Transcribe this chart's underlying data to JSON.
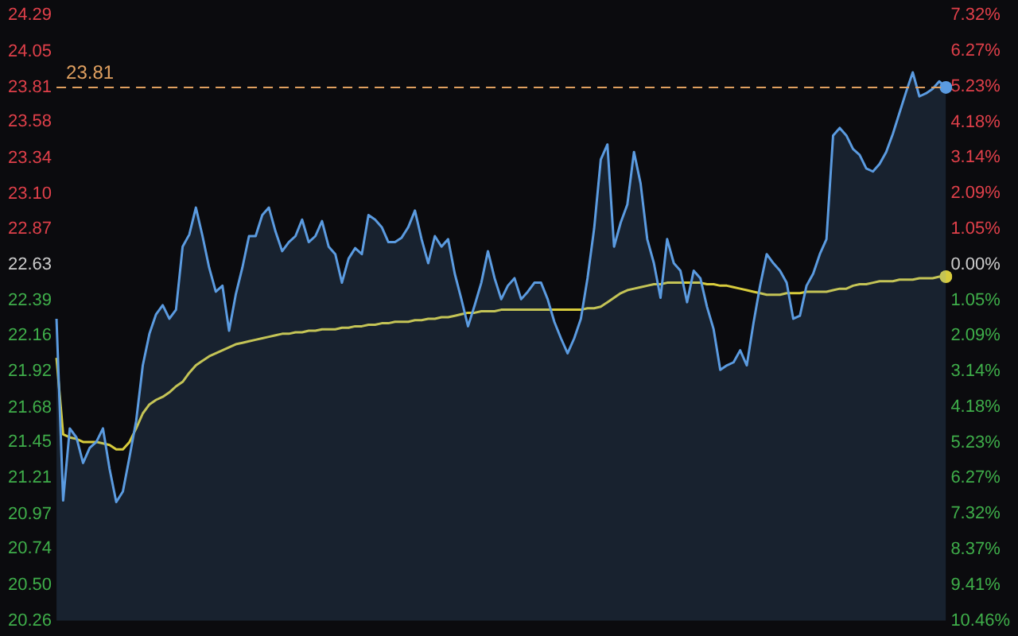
{
  "chart_data": {
    "type": "line",
    "categories": [
      null,
      null,
      null,
      null,
      null,
      null,
      null,
      null,
      null,
      null,
      null,
      null,
      null,
      null,
      null,
      null,
      null,
      null,
      null,
      null,
      null,
      null,
      null,
      null,
      null,
      null,
      null,
      null,
      null,
      null,
      null,
      null,
      null,
      null,
      null,
      null,
      null,
      null,
      null,
      null,
      null,
      null,
      null,
      null,
      null,
      null,
      null,
      null,
      null,
      null,
      null,
      null,
      null,
      null,
      null,
      null,
      null,
      null,
      null,
      null,
      null,
      null,
      null,
      null,
      null,
      null,
      null,
      null,
      null,
      null,
      null,
      null,
      null,
      null,
      null,
      null,
      null,
      null,
      null,
      null,
      null,
      null,
      null,
      null,
      null,
      null,
      null,
      null,
      null,
      null,
      null,
      null,
      null,
      null,
      null,
      null,
      null,
      null,
      null,
      null,
      null,
      null,
      null,
      null,
      null,
      null,
      null,
      null,
      null,
      null,
      null,
      null,
      null,
      null,
      null,
      null,
      null,
      null,
      null,
      null,
      null,
      null,
      null,
      null,
      null,
      null,
      null,
      null,
      null,
      null,
      null,
      null,
      null,
      null,
      null
    ],
    "series": [
      {
        "type": "area",
        "color": "#5b9be0",
        "values": [
          22.27,
          21.06,
          21.54,
          21.48,
          21.31,
          21.41,
          21.45,
          21.54,
          21.27,
          21.05,
          21.12,
          21.35,
          21.59,
          21.96,
          22.17,
          22.3,
          22.36,
          22.27,
          22.33,
          22.75,
          22.83,
          23.01,
          22.82,
          22.61,
          22.45,
          22.49,
          22.19,
          22.43,
          22.61,
          22.82,
          22.82,
          22.96,
          23.01,
          22.85,
          22.72,
          22.78,
          22.82,
          22.93,
          22.78,
          22.82,
          22.92,
          22.75,
          22.7,
          22.51,
          22.67,
          22.74,
          22.7,
          22.96,
          22.93,
          22.88,
          22.78,
          22.78,
          22.81,
          22.88,
          22.99,
          22.8,
          22.64,
          22.82,
          22.75,
          22.8,
          22.57,
          22.4,
          22.22,
          22.36,
          22.51,
          22.72,
          22.54,
          22.4,
          22.49,
          22.54,
          22.4,
          22.45,
          22.51,
          22.51,
          22.4,
          22.25,
          22.14,
          22.04,
          22.14,
          22.27,
          22.54,
          22.87,
          23.33,
          23.43,
          22.75,
          22.91,
          23.03,
          23.38,
          23.17,
          22.8,
          22.64,
          22.41,
          22.8,
          22.64,
          22.59,
          22.38,
          22.59,
          22.54,
          22.35,
          22.2,
          21.93,
          21.96,
          21.98,
          22.06,
          21.96,
          22.24,
          22.49,
          22.7,
          22.64,
          22.59,
          22.51,
          22.27,
          22.29,
          22.49,
          22.57,
          22.7,
          22.8,
          23.49,
          23.54,
          23.49,
          23.4,
          23.36,
          23.27,
          23.25,
          23.3,
          23.38,
          23.5,
          23.64,
          23.78,
          23.91,
          23.75,
          23.77,
          23.8,
          23.85,
          23.81
        ]
      },
      {
        "type": "line",
        "color": "#d8cc3c",
        "values": [
          22.01,
          21.5,
          21.48,
          21.47,
          21.45,
          21.45,
          21.45,
          21.44,
          21.43,
          21.4,
          21.4,
          21.45,
          21.54,
          21.64,
          21.7,
          21.73,
          21.75,
          21.78,
          21.82,
          21.85,
          21.91,
          21.96,
          21.99,
          22.02,
          22.04,
          22.06,
          22.08,
          22.1,
          22.11,
          22.12,
          22.13,
          22.14,
          22.15,
          22.16,
          22.17,
          22.17,
          22.18,
          22.18,
          22.19,
          22.19,
          22.2,
          22.2,
          22.2,
          22.21,
          22.21,
          22.22,
          22.22,
          22.23,
          22.23,
          22.24,
          22.24,
          22.25,
          22.25,
          22.25,
          22.26,
          22.26,
          22.27,
          22.27,
          22.28,
          22.28,
          22.29,
          22.3,
          22.31,
          22.31,
          22.32,
          22.32,
          22.32,
          22.33,
          22.33,
          22.33,
          22.33,
          22.33,
          22.33,
          22.33,
          22.33,
          22.33,
          22.33,
          22.33,
          22.33,
          22.33,
          22.34,
          22.34,
          22.35,
          22.38,
          22.41,
          22.44,
          22.46,
          22.47,
          22.48,
          22.49,
          22.5,
          22.5,
          22.51,
          22.51,
          22.51,
          22.51,
          22.51,
          22.51,
          22.5,
          22.5,
          22.49,
          22.49,
          22.48,
          22.47,
          22.46,
          22.45,
          22.44,
          22.43,
          22.43,
          22.43,
          22.44,
          22.44,
          22.44,
          22.45,
          22.45,
          22.45,
          22.45,
          22.46,
          22.47,
          22.47,
          22.49,
          22.5,
          22.5,
          22.51,
          22.52,
          22.52,
          22.52,
          22.53,
          22.53,
          22.53,
          22.54,
          22.54,
          22.54,
          22.55,
          22.55
        ]
      }
    ],
    "ylim": [
      20.26,
      24.29
    ],
    "yticks": [
      24.29,
      24.05,
      23.81,
      23.58,
      23.34,
      {
        "value": 23.1,
        "label": "23.10"
      },
      22.87,
      22.63,
      22.39,
      22.16,
      21.92,
      21.68,
      21.45,
      21.21,
      20.97,
      20.74,
      {
        "value": 20.5,
        "label": "20.50"
      },
      20.26
    ],
    "y2lim": [
      -10.46,
      7.32
    ],
    "y2ticks": [
      {
        "value": 7.32,
        "label": "7.32%"
      },
      {
        "value": 6.27,
        "label": "6.27%"
      },
      {
        "value": 5.23,
        "label": "5.23%"
      },
      {
        "value": 4.18,
        "label": "4.18%"
      },
      {
        "value": 3.14,
        "label": "3.14%"
      },
      {
        "value": 2.09,
        "label": "2.09%"
      },
      {
        "value": 1.05,
        "label": "1.05%"
      },
      {
        "value": 0,
        "label": "0.00%"
      },
      {
        "value": -1.05,
        "label": "1.05%"
      },
      {
        "value": -2.09,
        "label": "2.09%"
      },
      {
        "value": -3.14,
        "label": "3.14%"
      },
      {
        "value": -4.18,
        "label": "4.18%"
      },
      {
        "value": -5.23,
        "label": "5.23%"
      },
      {
        "value": -6.27,
        "label": "6.27%"
      },
      {
        "value": -7.32,
        "label": "7.32%"
      },
      {
        "value": -8.37,
        "label": "8.37%"
      },
      {
        "value": -9.41,
        "label": "9.41%"
      },
      {
        "value": -10.46,
        "label": "10.46%"
      }
    ],
    "ref_lines": [
      {
        "axis": "y",
        "value": 23.81,
        "label": "23.81",
        "color": "#e0a060",
        "line_style": "dashed"
      }
    ],
    "grid": false,
    "legend": false,
    "line_style": "solid"
  }
}
